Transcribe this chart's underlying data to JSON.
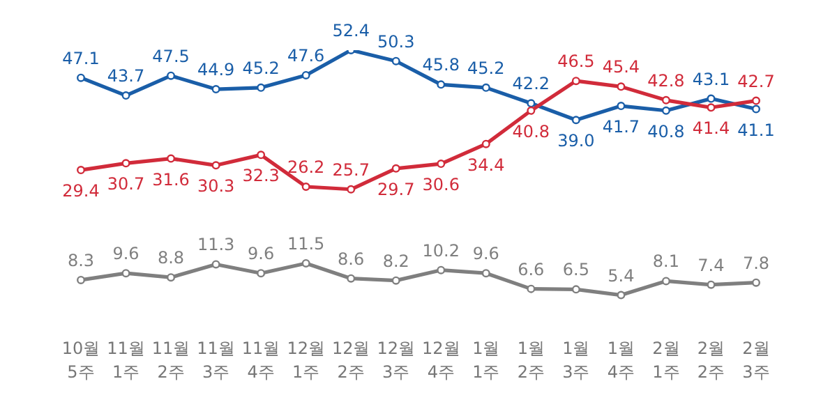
{
  "chart_data": {
    "type": "line",
    "categories": [
      "10월 5주",
      "11월 1주",
      "11월 2주",
      "11월 3주",
      "11월 4주",
      "12월 1주",
      "12월 2주",
      "12월 3주",
      "12월 4주",
      "1월 1주",
      "1월 2주",
      "1월 3주",
      "1월 4주",
      "2월 1주",
      "2월 2주",
      "2월 3주"
    ],
    "series": [
      {
        "color": "#1a5ea8",
        "values": [
          47.1,
          43.7,
          47.5,
          44.9,
          45.2,
          47.6,
          52.4,
          50.3,
          45.8,
          45.2,
          42.2,
          39.0,
          41.7,
          40.8,
          43.1,
          41.1
        ],
        "value_labels": [
          "47.1",
          "43.7",
          "47.5",
          "44.9",
          "45.2",
          "47.6",
          "52.4",
          "50.3",
          "45.8",
          "45.2",
          "42.2",
          "39.0",
          "41.7",
          "40.8",
          "43.1",
          "41.1"
        ]
      },
      {
        "color": "#d12b3a",
        "values": [
          29.4,
          30.7,
          31.6,
          30.3,
          32.3,
          26.2,
          25.7,
          29.7,
          30.6,
          34.4,
          40.8,
          46.5,
          45.4,
          42.8,
          41.4,
          42.7
        ]
      },
      {
        "color": "#7f7f7f",
        "values": [
          8.3,
          9.6,
          8.8,
          11.3,
          9.6,
          11.5,
          8.6,
          8.2,
          10.2,
          9.6,
          6.6,
          6.5,
          5.4,
          8.1,
          7.4,
          7.8
        ]
      }
    ],
    "data_labels": true,
    "marker": "circle",
    "line_style": "solid",
    "grid": false,
    "legend": false
  }
}
